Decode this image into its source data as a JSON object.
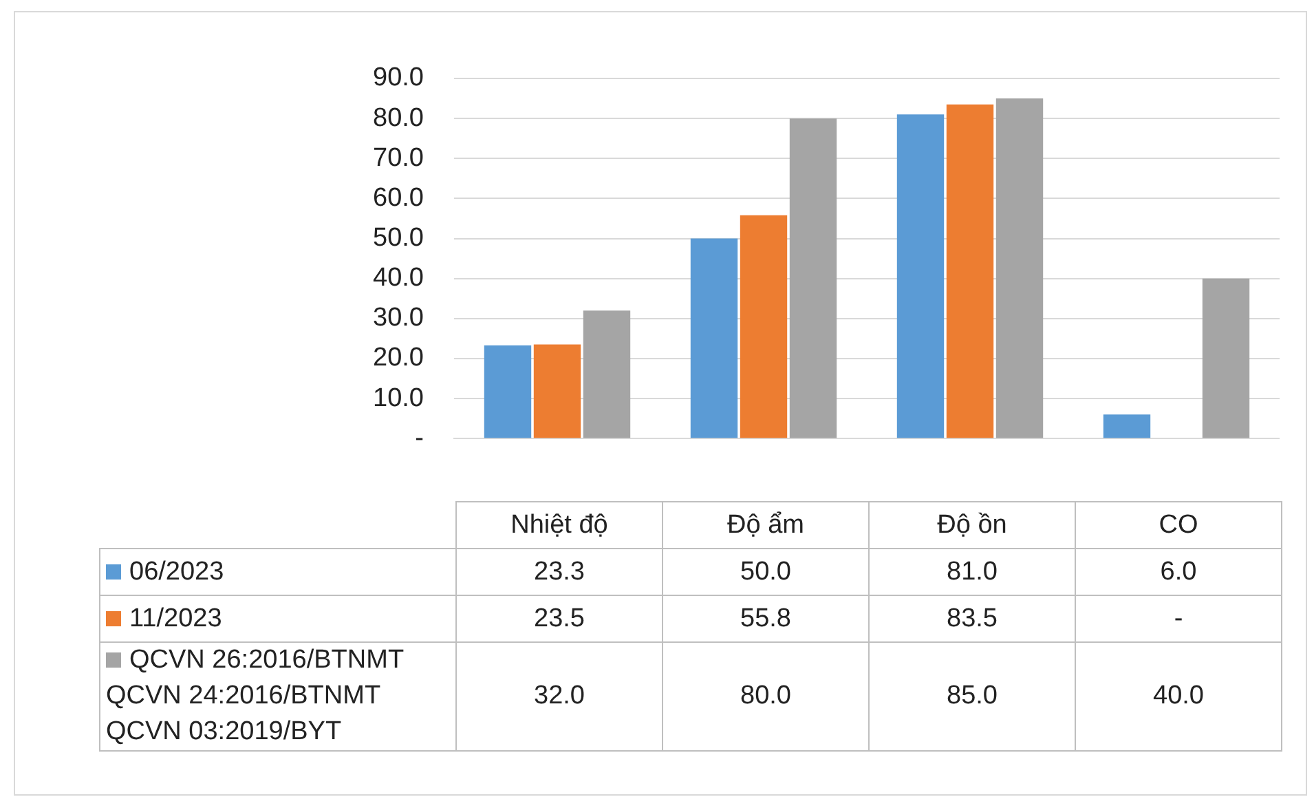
{
  "chart_data": {
    "type": "bar",
    "categories": [
      "Nhiệt độ",
      "Độ ẩm",
      "Độ ồn",
      "CO"
    ],
    "series": [
      {
        "name": "06/2023",
        "color": "#5b9bd5",
        "values": [
          23.3,
          50.0,
          81.0,
          6.0
        ],
        "value_labels": [
          "23.3",
          "50.0",
          "81.0",
          "6.0"
        ]
      },
      {
        "name": "11/2023",
        "color": "#ed7d31",
        "values": [
          23.5,
          55.8,
          83.5,
          0
        ],
        "value_labels": [
          "23.5",
          "55.8",
          "83.5",
          "-"
        ]
      },
      {
        "name": "QCVN 26:2016/BTNMT\nQCVN 24:2016/BTNMT\nQCVN 03:2019/BYT",
        "color": "#a5a5a5",
        "values": [
          32.0,
          80.0,
          85.0,
          40.0
        ],
        "value_labels": [
          "32.0",
          "80.0",
          "85.0",
          "40.0"
        ]
      }
    ],
    "ylim": [
      0,
      90
    ],
    "yticks": [
      {
        "value": 0,
        "label": "-"
      },
      {
        "value": 10,
        "label": "10.0"
      },
      {
        "value": 20,
        "label": "20.0"
      },
      {
        "value": 30,
        "label": "30.0"
      },
      {
        "value": 40,
        "label": "40.0"
      },
      {
        "value": 50,
        "label": "50.0"
      },
      {
        "value": 60,
        "label": "60.0"
      },
      {
        "value": 70,
        "label": "70.0"
      },
      {
        "value": 80,
        "label": "80.0"
      },
      {
        "value": 90,
        "label": "90.0"
      }
    ],
    "grid": true,
    "legend": "bottom"
  }
}
